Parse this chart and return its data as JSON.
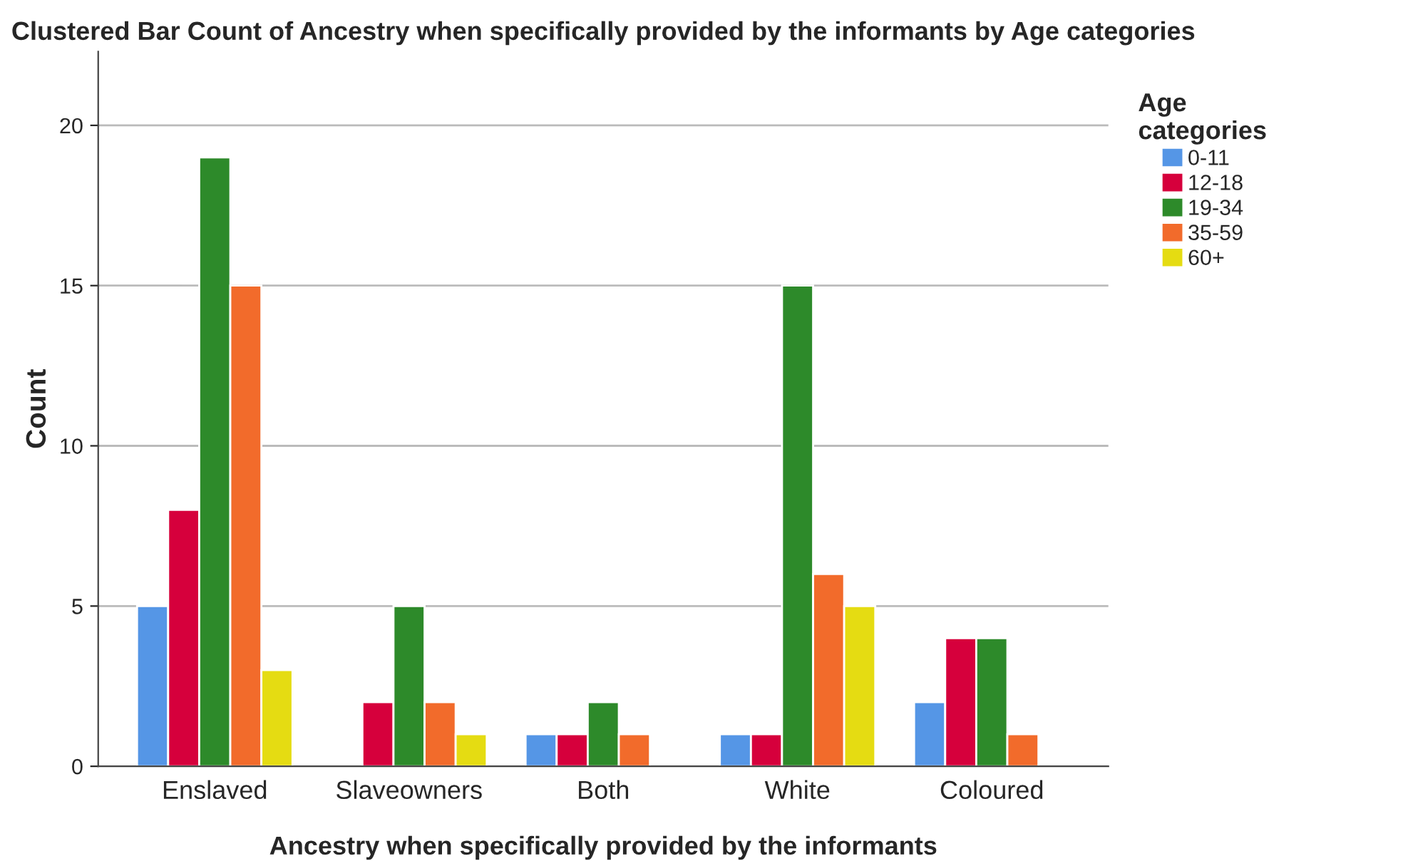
{
  "chart_data": {
    "type": "bar",
    "title": "Clustered Bar Count of Ancestry when specifically provided by the informants by Age categories",
    "xlabel": "Ancestry when specifically provided by the informants",
    "ylabel": "Count",
    "legend_title": "Age\ncategories",
    "categories": [
      "Enslaved",
      "Slaveowners",
      "Both",
      "White",
      "Coloured"
    ],
    "series": [
      {
        "name": "0-11",
        "color": "#5596e6",
        "values": [
          5,
          null,
          1,
          1,
          2
        ]
      },
      {
        "name": "12-18",
        "color": "#d6003c",
        "values": [
          8,
          2,
          1,
          1,
          4
        ]
      },
      {
        "name": "19-34",
        "color": "#2d8a2a",
        "values": [
          19,
          5,
          2,
          15,
          4
        ]
      },
      {
        "name": "35-59",
        "color": "#f26b2b",
        "values": [
          15,
          2,
          1,
          6,
          1
        ]
      },
      {
        "name": "60+",
        "color": "#e5dc12",
        "values": [
          3,
          1,
          null,
          5,
          null
        ]
      }
    ],
    "ylim": [
      0,
      22.3
    ],
    "yticks": [
      0,
      5,
      10,
      15,
      20
    ],
    "grid": "y",
    "legend": "right"
  }
}
